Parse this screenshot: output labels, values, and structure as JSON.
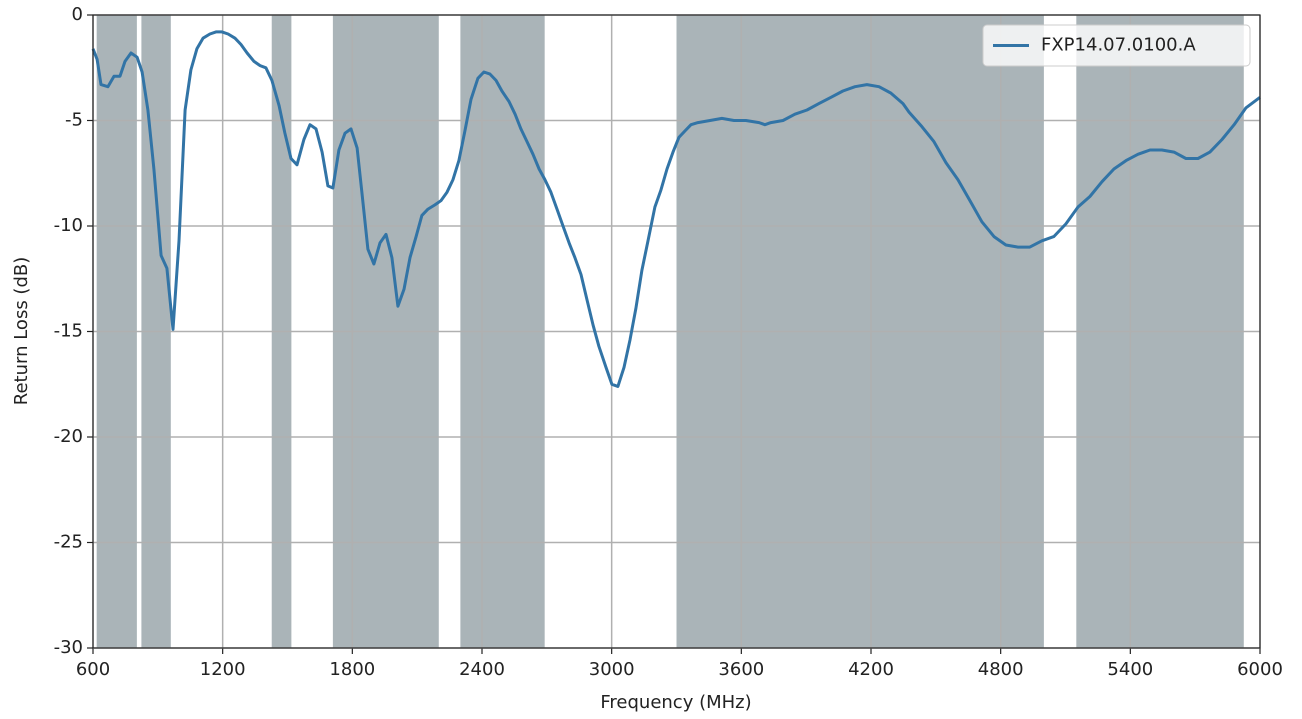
{
  "chart_data": {
    "type": "line",
    "xlabel": "Frequency (MHz)",
    "ylabel": "Return Loss (dB)",
    "xlim": [
      600,
      6000
    ],
    "ylim": [
      -30,
      0
    ],
    "xticks": [
      600,
      1200,
      1800,
      2400,
      3000,
      3600,
      4200,
      4800,
      5400,
      6000
    ],
    "yticks": [
      0,
      -5,
      -10,
      -15,
      -20,
      -25,
      -30
    ],
    "grid": true,
    "legend": "upper right",
    "band_color": "#aab4b8",
    "bands": [
      [
        617,
        803
      ],
      [
        824,
        960
      ],
      [
        1427,
        1518
      ],
      [
        1710,
        2200
      ],
      [
        2300,
        2690
      ],
      [
        3300,
        5000
      ],
      [
        5150,
        5925
      ]
    ],
    "series": [
      {
        "name": "FXP14.07.0100.A",
        "color": "#3274a6",
        "x": [
          600,
          619,
          637,
          669,
          697,
          725,
          748,
          776,
          804,
          827,
          854,
          882,
          915,
          942,
          970,
          998,
          1026,
          1053,
          1081,
          1109,
          1141,
          1169,
          1197,
          1225,
          1257,
          1285,
          1313,
          1345,
          1373,
          1400,
          1428,
          1461,
          1488,
          1516,
          1544,
          1576,
          1604,
          1632,
          1660,
          1687,
          1710,
          1738,
          1766,
          1794,
          1822,
          1845,
          1872,
          1900,
          1928,
          1956,
          1983,
          2011,
          2039,
          2067,
          2095,
          2122,
          2150,
          2182,
          2210,
          2238,
          2266,
          2293,
          2321,
          2349,
          2381,
          2409,
          2437,
          2465,
          2492,
          2525,
          2553,
          2580,
          2608,
          2636,
          2664,
          2691,
          2719,
          2747,
          2775,
          2803,
          2830,
          2858,
          2886,
          2914,
          2941,
          2974,
          3001,
          3029,
          3057,
          3085,
          3112,
          3140,
          3168,
          3200,
          3228,
          3256,
          3284,
          3311,
          3339,
          3367,
          3399,
          3455,
          3510,
          3566,
          3621,
          3682,
          3709,
          3737,
          3793,
          3848,
          3904,
          3959,
          4015,
          4070,
          4126,
          4181,
          4237,
          4292,
          4348,
          4376,
          4436,
          4491,
          4547,
          4602,
          4658,
          4713,
          4769,
          4824,
          4880,
          4935,
          4991,
          5046,
          5102,
          5158,
          5213,
          5269,
          5324,
          5380,
          5435,
          5491,
          5546,
          5602,
          5657,
          5713,
          5768,
          5824,
          5880,
          5935,
          6000
        ],
        "values": [
          -1.6,
          -2.1,
          -3.3,
          -3.4,
          -2.9,
          -2.9,
          -2.2,
          -1.8,
          -2.0,
          -2.7,
          -4.5,
          -7.3,
          -11.4,
          -12.0,
          -14.9,
          -10.7,
          -4.5,
          -2.6,
          -1.6,
          -1.1,
          -0.9,
          -0.8,
          -0.8,
          -0.9,
          -1.1,
          -1.4,
          -1.8,
          -2.2,
          -2.4,
          -2.5,
          -3.1,
          -4.3,
          -5.6,
          -6.8,
          -7.1,
          -5.9,
          -5.2,
          -5.4,
          -6.5,
          -8.1,
          -8.2,
          -6.4,
          -5.6,
          -5.4,
          -6.3,
          -8.5,
          -11.1,
          -11.8,
          -10.8,
          -10.4,
          -11.5,
          -13.8,
          -13.0,
          -11.5,
          -10.5,
          -9.5,
          -9.2,
          -9.0,
          -8.8,
          -8.4,
          -7.8,
          -6.9,
          -5.5,
          -4.0,
          -3.0,
          -2.7,
          -2.8,
          -3.1,
          -3.6,
          -4.1,
          -4.7,
          -5.4,
          -6.0,
          -6.6,
          -7.3,
          -7.8,
          -8.4,
          -9.2,
          -10.0,
          -10.8,
          -11.5,
          -12.3,
          -13.5,
          -14.7,
          -15.7,
          -16.7,
          -17.5,
          -17.6,
          -16.7,
          -15.4,
          -13.9,
          -12.1,
          -10.7,
          -9.1,
          -8.3,
          -7.3,
          -6.5,
          -5.8,
          -5.5,
          -5.2,
          -5.1,
          -5.0,
          -4.9,
          -5.0,
          -5.0,
          -5.1,
          -5.2,
          -5.1,
          -5.0,
          -4.7,
          -4.5,
          -4.2,
          -3.9,
          -3.6,
          -3.4,
          -3.3,
          -3.4,
          -3.7,
          -4.2,
          -4.6,
          -5.3,
          -6.0,
          -7.0,
          -7.8,
          -8.8,
          -9.8,
          -10.5,
          -10.9,
          -11.0,
          -11.0,
          -10.7,
          -10.5,
          -9.9,
          -9.1,
          -8.6,
          -7.9,
          -7.3,
          -6.9,
          -6.6,
          -6.4,
          -6.4,
          -6.5,
          -6.8,
          -6.8,
          -6.5,
          -5.9,
          -5.2,
          -4.4,
          -3.9
        ]
      }
    ]
  }
}
